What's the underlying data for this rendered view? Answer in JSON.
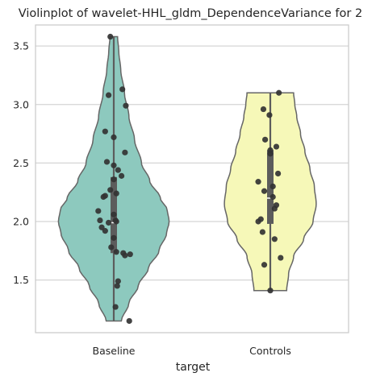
{
  "chart_data": {
    "type": "violin",
    "title": "Violinplot of wavelet-HHL_gldm_DependenceVariance for 2",
    "xlabel": "target",
    "ylabel": "",
    "categories": [
      "Baseline",
      "Controls"
    ],
    "ylim": [
      1.05,
      3.68
    ],
    "yticks": [
      1.5,
      2.0,
      2.5,
      3.0,
      3.5
    ],
    "ytick_labels": [
      "1.5",
      "2.0",
      "2.5",
      "3.0",
      "3.5"
    ],
    "grid": "horizontal",
    "colors": {
      "Baseline": "#8dc9be",
      "Controls": "#f6f8b8",
      "points": "#333333",
      "outline": "#666666",
      "box": "#5c5c5c",
      "grid": "#d5d5d5",
      "frame": "#cccccc"
    },
    "violins": [
      {
        "name": "Baseline",
        "range": [
          1.15,
          3.58
        ],
        "quartiles": [
          1.73,
          2.0,
          2.38
        ],
        "median": 1.99,
        "density": [
          [
            1.15,
            0.12
          ],
          [
            1.3,
            0.24
          ],
          [
            1.45,
            0.39
          ],
          [
            1.6,
            0.55
          ],
          [
            1.75,
            0.72
          ],
          [
            1.9,
            0.84
          ],
          [
            2.0,
            0.88
          ],
          [
            2.1,
            0.85
          ],
          [
            2.2,
            0.74
          ],
          [
            2.35,
            0.57
          ],
          [
            2.5,
            0.44
          ],
          [
            2.7,
            0.33
          ],
          [
            2.9,
            0.24
          ],
          [
            3.1,
            0.17
          ],
          [
            3.3,
            0.11
          ],
          [
            3.45,
            0.08
          ],
          [
            3.58,
            0.06
          ]
        ],
        "points": [
          3.58,
          3.13,
          3.08,
          2.99,
          2.77,
          2.72,
          2.59,
          2.51,
          2.48,
          2.44,
          2.39,
          2.36,
          2.27,
          2.24,
          2.22,
          2.21,
          2.09,
          2.06,
          2.01,
          2.01,
          2.0,
          1.99,
          1.95,
          1.92,
          1.86,
          1.78,
          1.74,
          1.73,
          1.72,
          1.71,
          1.49,
          1.45,
          1.27,
          1.15
        ],
        "jitter": [
          -0.04,
          0.1,
          -0.06,
          0.14,
          -0.1,
          0.0,
          0.13,
          -0.08,
          0.0,
          0.05,
          0.09,
          0.0,
          -0.04,
          0.03,
          -0.1,
          -0.12,
          -0.18,
          0.0,
          -0.16,
          0.02,
          0.03,
          -0.06,
          -0.14,
          -0.1,
          0.0,
          -0.03,
          0.03,
          0.11,
          0.19,
          0.13,
          0.05,
          0.04,
          0.02,
          0.18
        ]
      },
      {
        "name": "Controls",
        "range": [
          1.41,
          3.1
        ],
        "quartiles": [
          1.98,
          2.2,
          2.61
        ],
        "median": 2.2,
        "density": [
          [
            1.41,
            0.26
          ],
          [
            1.55,
            0.29
          ],
          [
            1.7,
            0.37
          ],
          [
            1.85,
            0.53
          ],
          [
            2.0,
            0.68
          ],
          [
            2.15,
            0.73
          ],
          [
            2.3,
            0.7
          ],
          [
            2.45,
            0.63
          ],
          [
            2.6,
            0.55
          ],
          [
            2.75,
            0.48
          ],
          [
            2.9,
            0.42
          ],
          [
            3.0,
            0.39
          ],
          [
            3.1,
            0.37
          ]
        ],
        "points": [
          3.1,
          2.96,
          2.91,
          2.7,
          2.64,
          2.61,
          2.58,
          2.41,
          2.34,
          2.3,
          2.26,
          2.21,
          2.14,
          2.11,
          2.02,
          2.0,
          1.91,
          1.85,
          1.69,
          1.63,
          1.41
        ],
        "jitter": [
          0.1,
          -0.08,
          -0.01,
          -0.06,
          0.07,
          0.0,
          0.0,
          0.09,
          -0.14,
          0.03,
          -0.07,
          0.03,
          0.07,
          0.05,
          -0.11,
          -0.14,
          -0.09,
          0.05,
          0.12,
          -0.07,
          0.0
        ]
      }
    ]
  }
}
